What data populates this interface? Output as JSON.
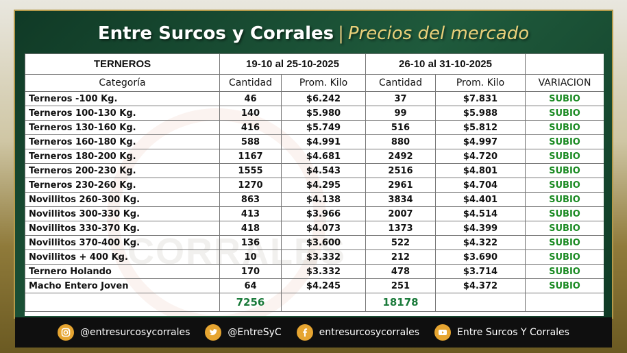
{
  "header": {
    "title": "Entre Surcos y Corrales",
    "separator": "|",
    "subtitle": "Precios del mercado"
  },
  "watermark": {
    "text": "CORRALES"
  },
  "table": {
    "section_label": "TERNEROS",
    "period_1": "19-10 al 25-10-2025",
    "period_2": "26-10 al 31-10-2025",
    "columns": [
      "Categoría",
      "Cantidad",
      "Prom. Kilo",
      "Cantidad",
      "Prom. Kilo",
      "VARIACION"
    ],
    "rows": [
      {
        "category": "Terneros -100 Kg.",
        "qty1": "46",
        "price1": "$6.242",
        "qty2": "37",
        "price2": "$7.831",
        "variation": "SUBIO"
      },
      {
        "category": "Terneros 100-130 Kg.",
        "qty1": "140",
        "price1": "$5.980",
        "qty2": "99",
        "price2": "$5.988",
        "variation": "SUBIO"
      },
      {
        "category": "Terneros 130-160 Kg.",
        "qty1": "416",
        "price1": "$5.749",
        "qty2": "516",
        "price2": "$5.812",
        "variation": "SUBIO"
      },
      {
        "category": "Terneros 160-180 Kg.",
        "qty1": "588",
        "price1": "$4.991",
        "qty2": "880",
        "price2": "$4.997",
        "variation": "SUBIO"
      },
      {
        "category": "Terneros 180-200 Kg.",
        "qty1": "1167",
        "price1": "$4.681",
        "qty2": "2492",
        "price2": "$4.720",
        "variation": "SUBIO"
      },
      {
        "category": "Terneros 200-230 Kg.",
        "qty1": "1555",
        "price1": "$4.543",
        "qty2": "2516",
        "price2": "$4.801",
        "variation": "SUBIO"
      },
      {
        "category": "Terneros 230-260 Kg.",
        "qty1": "1270",
        "price1": "$4.295",
        "qty2": "2961",
        "price2": "$4.704",
        "variation": "SUBIO"
      },
      {
        "category": "Novillitos 260-300 Kg.",
        "qty1": "863",
        "price1": "$4.138",
        "qty2": "3834",
        "price2": "$4.401",
        "variation": "SUBIO"
      },
      {
        "category": "Novillitos 300-330 Kg.",
        "qty1": "413",
        "price1": "$3.966",
        "qty2": "2007",
        "price2": "$4.514",
        "variation": "SUBIO"
      },
      {
        "category": "Novillitos 330-370 Kg.",
        "qty1": "418",
        "price1": "$4.073",
        "qty2": "1373",
        "price2": "$4.399",
        "variation": "SUBIO"
      },
      {
        "category": "Novillitos 370-400 Kg.",
        "qty1": "136",
        "price1": "$3.600",
        "qty2": "522",
        "price2": "$4.322",
        "variation": "SUBIO"
      },
      {
        "category": "Novillitos  + 400 Kg.",
        "qty1": "10",
        "price1": "$3.332",
        "qty2": "212",
        "price2": "$3.690",
        "variation": "SUBIO"
      },
      {
        "category": "Ternero Holando",
        "qty1": "170",
        "price1": "$3.332",
        "qty2": "478",
        "price2": "$3.714",
        "variation": "SUBIO"
      },
      {
        "category": "Macho Entero Joven",
        "qty1": "64",
        "price1": "$4.245",
        "qty2": "251",
        "price2": "$4.372",
        "variation": "SUBIO"
      }
    ],
    "total_qty1": "7256",
    "total_qty2": "18178"
  },
  "footer": {
    "instagram": "@entresurcosycorrales",
    "twitter": "@EntreSyC",
    "facebook": "entresurcosycorrales",
    "youtube": "Entre Surcos Y Corrales"
  },
  "colors": {
    "brand_green": "#1f5a3c",
    "accent_gold": "#e6a531",
    "variation_green": "#1a8a22"
  }
}
